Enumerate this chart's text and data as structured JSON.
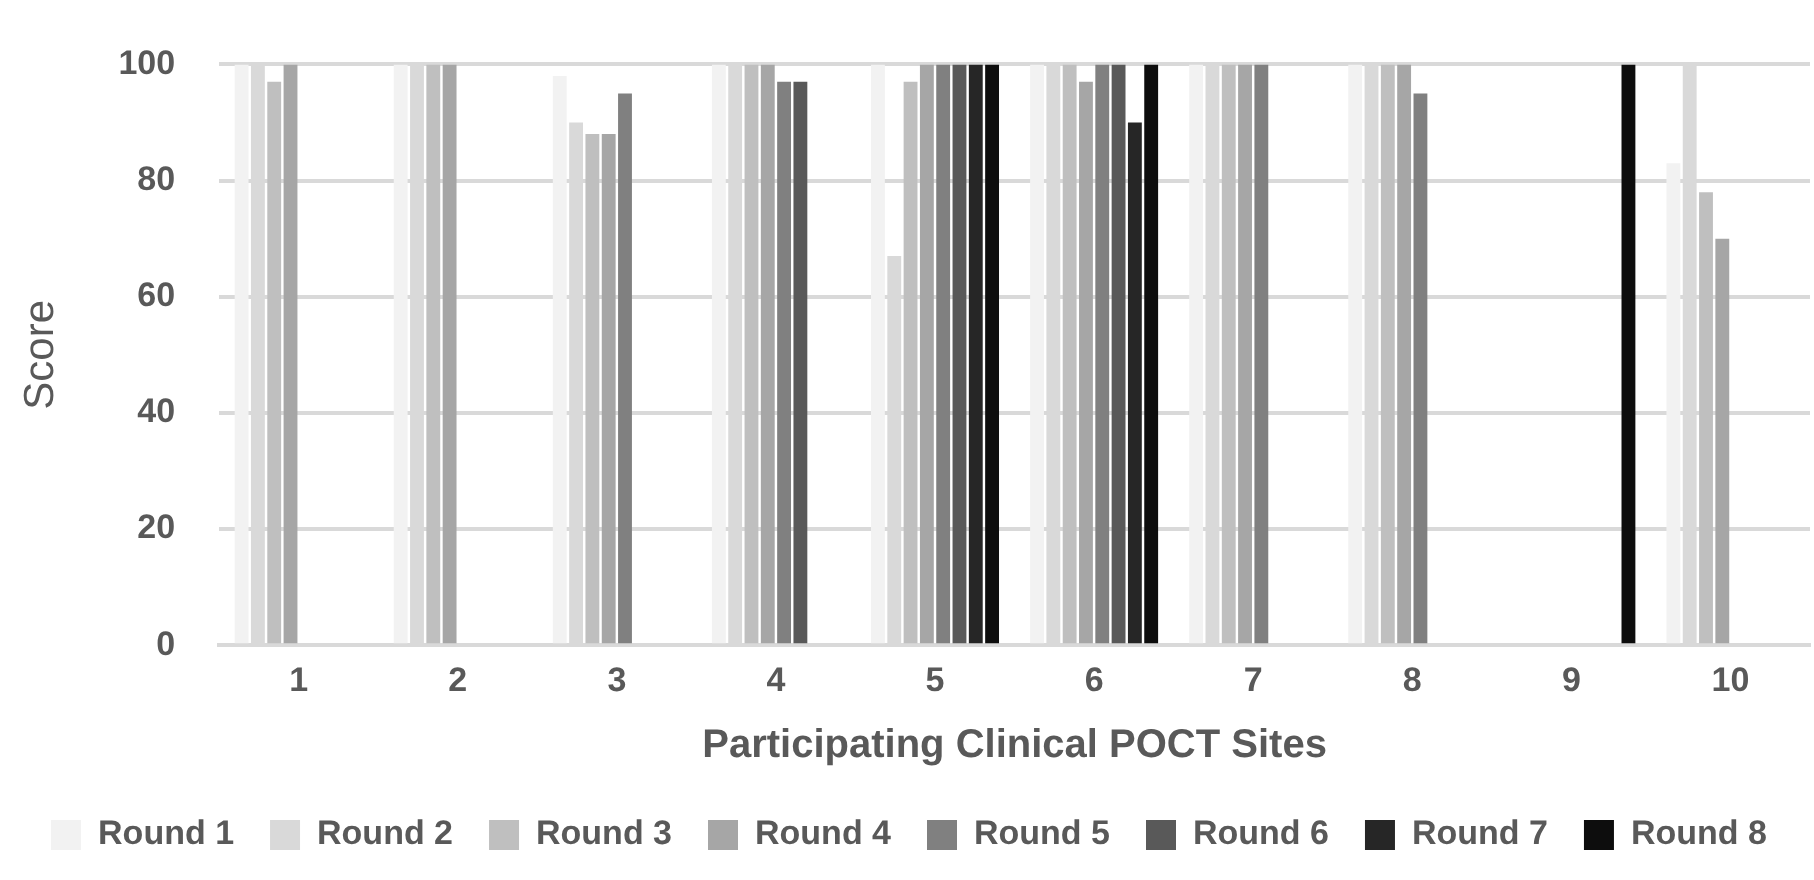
{
  "chart_data": {
    "type": "bar",
    "xlabel": "Participating Clinical POCT Sites",
    "ylabel": "Score",
    "categories": [
      "1",
      "2",
      "3",
      "4",
      "5",
      "6",
      "7",
      "8",
      "9",
      "10"
    ],
    "series": [
      {
        "name": "Round 1",
        "color": "#f2f2f2",
        "values": [
          100,
          100,
          98,
          100,
          100,
          100,
          100,
          100,
          null,
          83
        ]
      },
      {
        "name": "Round 2",
        "color": "#d9d9d9",
        "values": [
          100,
          100,
          90,
          100,
          67,
          100,
          100,
          100,
          null,
          100
        ]
      },
      {
        "name": "Round 3",
        "color": "#bfbfbf",
        "values": [
          97,
          100,
          88,
          100,
          97,
          100,
          100,
          100,
          null,
          78
        ]
      },
      {
        "name": "Round 4",
        "color": "#a6a6a6",
        "values": [
          100,
          100,
          88,
          100,
          100,
          97,
          100,
          100,
          null,
          70
        ]
      },
      {
        "name": "Round 5",
        "color": "#808080",
        "values": [
          null,
          null,
          95,
          97,
          100,
          100,
          100,
          95,
          null,
          null
        ]
      },
      {
        "name": "Round 6",
        "color": "#595959",
        "values": [
          null,
          null,
          null,
          97,
          100,
          100,
          null,
          null,
          null,
          null
        ]
      },
      {
        "name": "Round 7",
        "color": "#262626",
        "values": [
          null,
          null,
          null,
          null,
          100,
          90,
          null,
          null,
          null,
          null
        ]
      },
      {
        "name": "Round 8",
        "color": "#0d0d0d",
        "values": [
          null,
          null,
          null,
          null,
          100,
          100,
          null,
          null,
          100,
          null
        ]
      }
    ],
    "ylim": [
      0,
      100
    ],
    "yticks": [
      0,
      20,
      40,
      60,
      80,
      100
    ],
    "grid": "y",
    "legend": "bottom"
  }
}
